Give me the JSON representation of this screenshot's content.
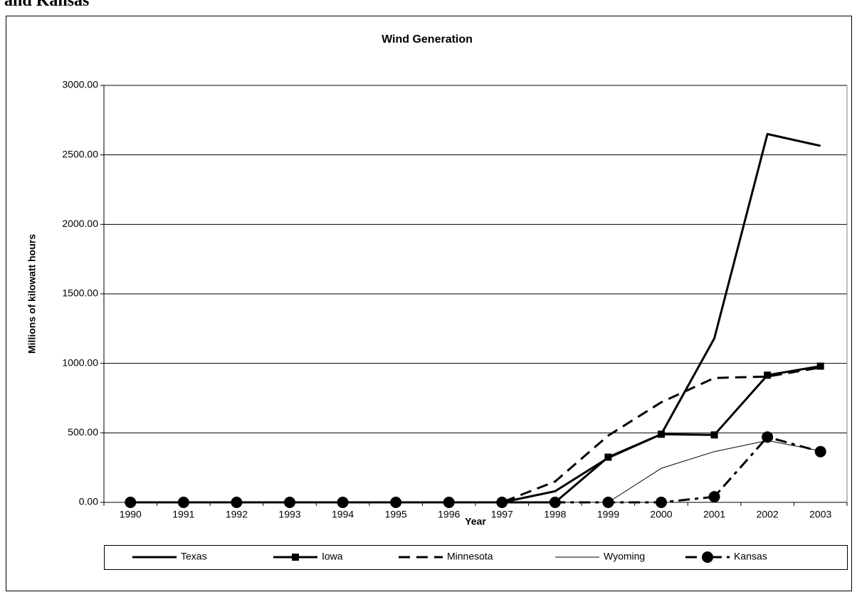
{
  "heading": "and Kansas",
  "chart_data": {
    "type": "line",
    "title": "Wind Generation",
    "x_label": "Year",
    "y_label": "Millions of kilowatt hours",
    "categories": [
      "1990",
      "1991",
      "1992",
      "1993",
      "1994",
      "1995",
      "1996",
      "1997",
      "1998",
      "1999",
      "2000",
      "2001",
      "2002",
      "2003"
    ],
    "ylim": [
      0,
      3000
    ],
    "yticks": [
      {
        "value": 0,
        "label": "0.00"
      },
      {
        "value": 500,
        "label": "500.00"
      },
      {
        "value": 1000,
        "label": "1000.00"
      },
      {
        "value": 1500,
        "label": "1500.00"
      },
      {
        "value": 2000,
        "label": "2000.00"
      },
      {
        "value": 2500,
        "label": "2500.00"
      },
      {
        "value": 3000,
        "label": "3000.00"
      }
    ],
    "grid": true,
    "legend": "bottom",
    "series": [
      {
        "name": "Texas",
        "color": "#000000",
        "style": "solid",
        "width": 3,
        "marker": null,
        "values": [
          0,
          0,
          0,
          0,
          0,
          0,
          0,
          0,
          80,
          320,
          490,
          1180,
          2650,
          2565
        ]
      },
      {
        "name": "Iowa",
        "color": "#000000",
        "style": "solid",
        "width": 3,
        "marker": "square",
        "values": [
          0,
          0,
          0,
          0,
          0,
          0,
          0,
          0,
          0,
          325,
          490,
          485,
          915,
          980
        ]
      },
      {
        "name": "Minnesota",
        "color": "#000000",
        "style": "dashed",
        "width": 3,
        "marker": null,
        "values": [
          0,
          0,
          0,
          0,
          0,
          0,
          0,
          0,
          150,
          480,
          720,
          895,
          905,
          970
        ]
      },
      {
        "name": "Wyoming",
        "color": "#000000",
        "style": "solid",
        "width": 1,
        "marker": null,
        "values": [
          0,
          0,
          0,
          0,
          0,
          0,
          0,
          0,
          0,
          0,
          245,
          365,
          445,
          370
        ]
      },
      {
        "name": "Kansas",
        "color": "#000000",
        "style": "dashdot",
        "width": 3,
        "marker": "circle",
        "values": [
          0,
          0,
          0,
          0,
          0,
          0,
          0,
          0,
          0,
          0,
          0,
          40,
          470,
          365
        ]
      }
    ]
  }
}
